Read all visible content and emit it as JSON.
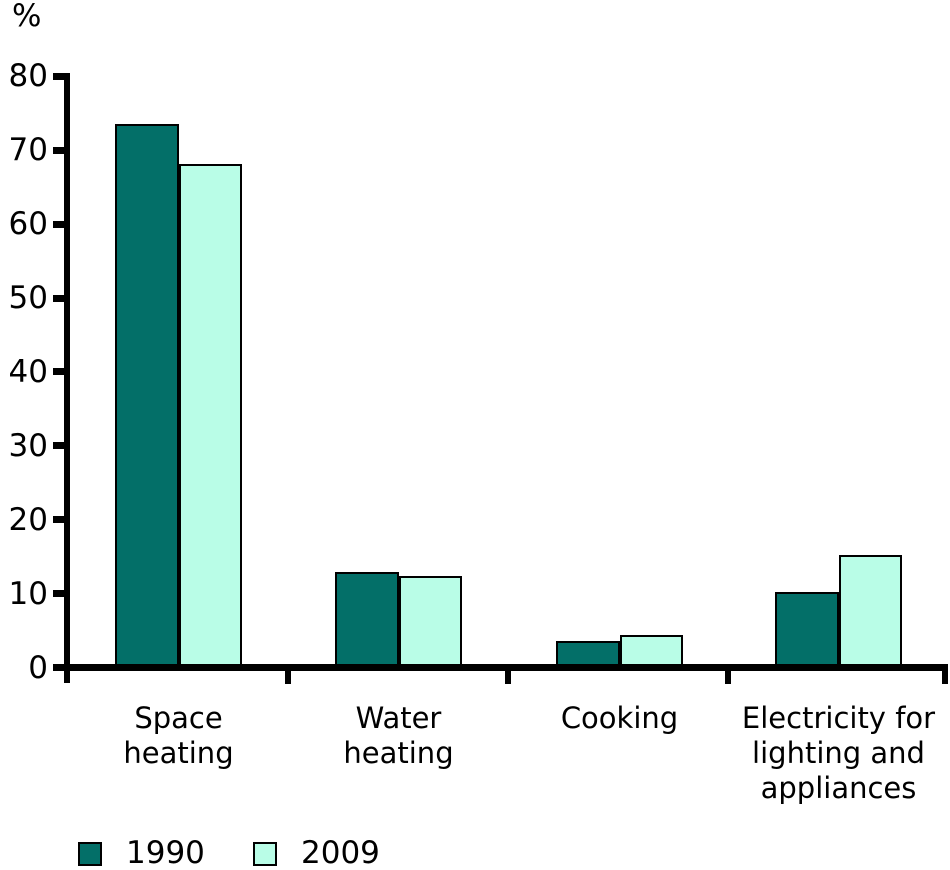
{
  "chart_data": {
    "type": "bar",
    "title": "",
    "ylabel": "%",
    "xlabel": "",
    "categories": [
      [
        "Space",
        "heating"
      ],
      [
        "Water",
        "heating"
      ],
      [
        "Cooking"
      ],
      [
        "Electricity for",
        "lighting and",
        "appliances"
      ]
    ],
    "series": [
      {
        "name": "1990",
        "color": "#036F68",
        "values": [
          73.5,
          12.9,
          3.6,
          10.2
        ]
      },
      {
        "name": "2009",
        "color": "#B9FDE7",
        "values": [
          68.2,
          12.4,
          4.4,
          15.2
        ]
      }
    ],
    "ylim": [
      0,
      80
    ],
    "ytick_step": 10,
    "grid": false,
    "legend_position": "bottom-left",
    "axis_color": "#000000",
    "background_color": "#FFFFFF"
  }
}
